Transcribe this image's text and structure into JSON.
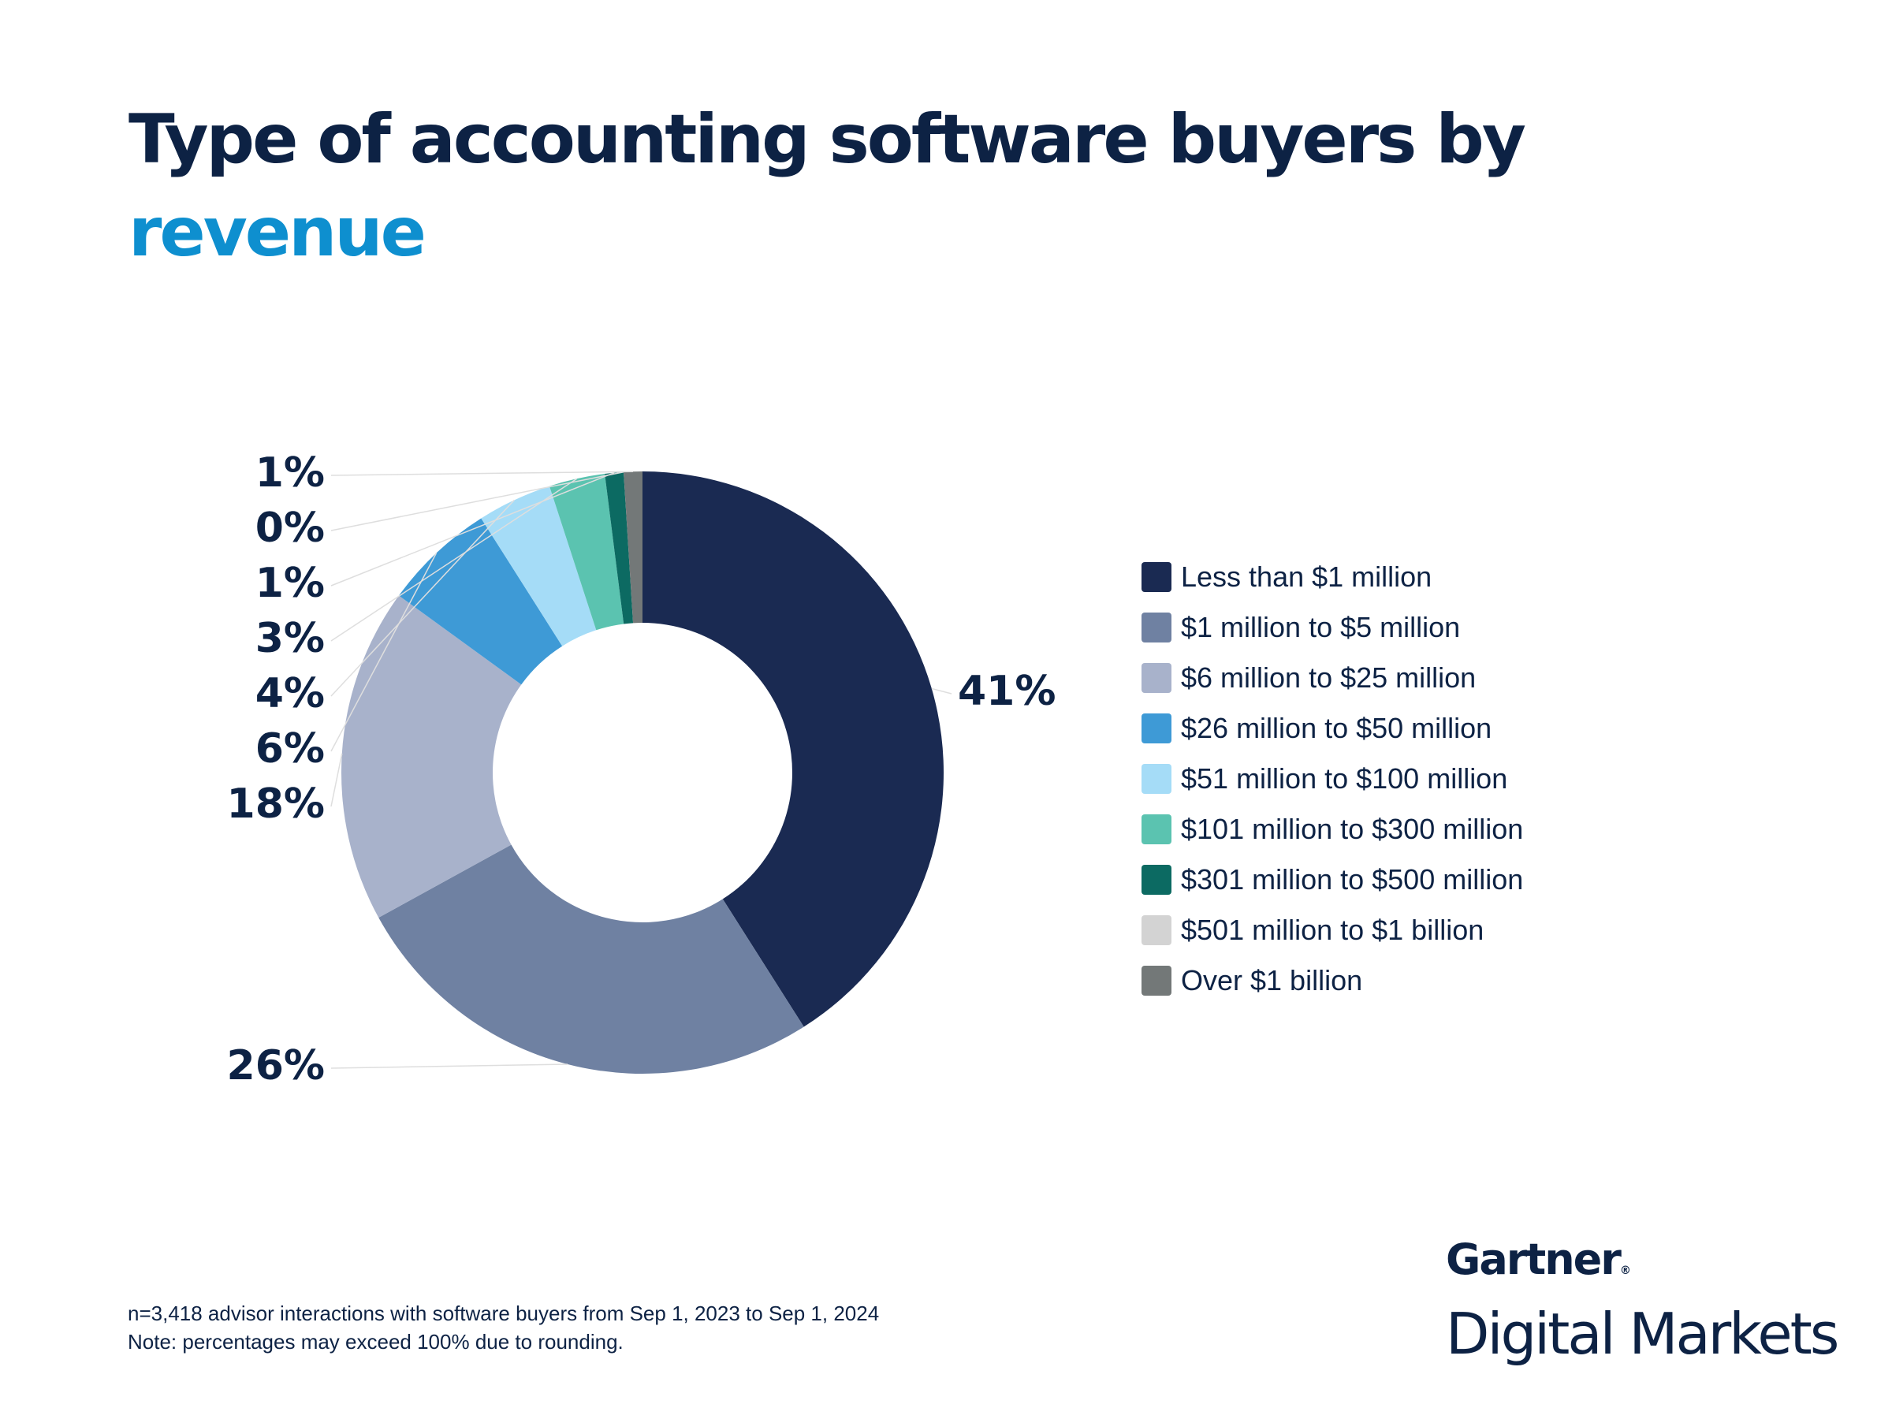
{
  "title": {
    "line1": "Type of accounting software buyers by",
    "line2": "revenue"
  },
  "colors": {
    "title": "#0d2244",
    "title_accent": "#0e8fcf"
  },
  "chart_data": {
    "type": "pie",
    "donut": true,
    "categories": [
      "Less than $1 million",
      "$1 million to $5 million",
      "$6 million to $25 million",
      "$26 million to $50 million",
      "$51 million to $100 million",
      "$101 million to $300 million",
      "$301 million to $500 million",
      "$501 million to $1 billion",
      "Over $1 billion"
    ],
    "values": [
      41,
      26,
      18,
      6,
      4,
      3,
      1,
      0,
      1
    ],
    "value_labels": [
      "41%",
      "26%",
      "18%",
      "6%",
      "4%",
      "3%",
      "1%",
      "0%",
      "1%"
    ],
    "colors": [
      "#1a2a52",
      "#6f81a2",
      "#a8b2cb",
      "#3e9ad6",
      "#a5dcf7",
      "#5bc3b0",
      "#0c6a62",
      "#d3d3d3",
      "#737878"
    ],
    "legend_position": "right"
  },
  "footnote": {
    "line1": "n=3,418 advisor interactions with software buyers from Sep 1, 2023 to Sep 1, 2024",
    "line2": "Note: percentages may exceed 100% due to rounding."
  },
  "logo": {
    "brand": "Gartner",
    "registered": "®",
    "sub": "Digital Markets"
  }
}
